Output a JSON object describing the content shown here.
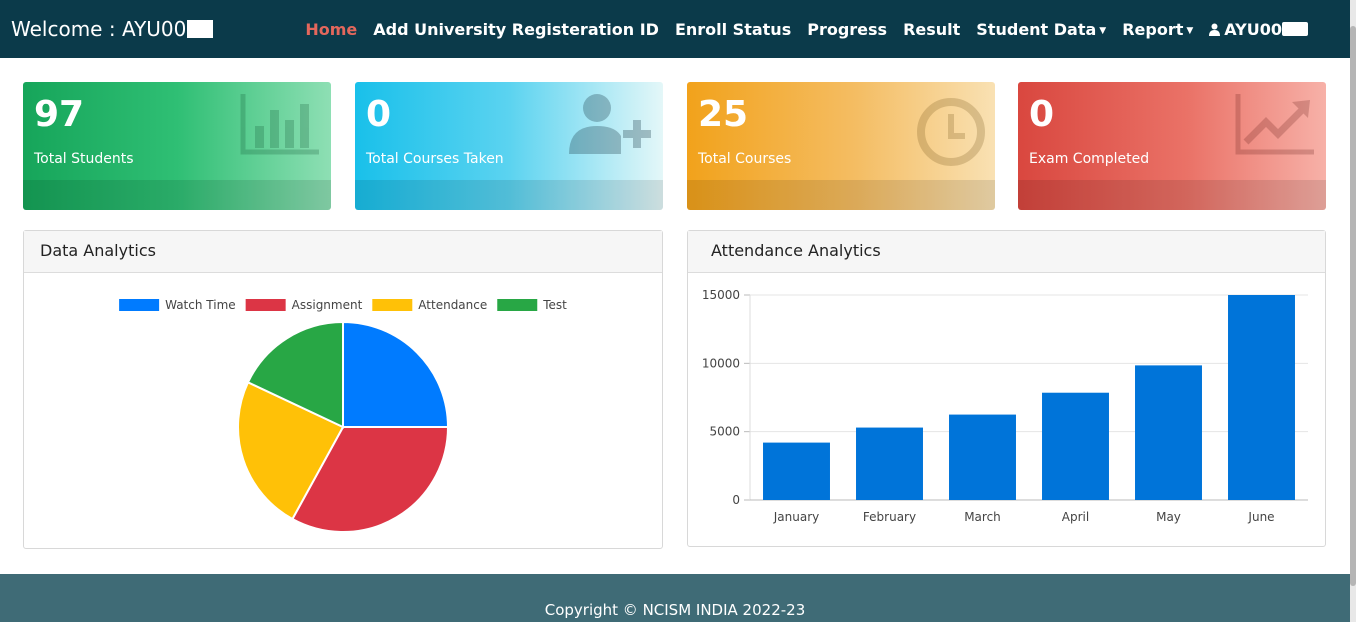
{
  "header": {
    "welcome": "Welcome : AYU00",
    "nav": [
      {
        "label": "Home",
        "active": true
      },
      {
        "label": "Add University Registeration ID"
      },
      {
        "label": "Enroll Status"
      },
      {
        "label": "Progress"
      },
      {
        "label": "Result"
      },
      {
        "label": "Student Data",
        "dropdown": true
      },
      {
        "label": "Report",
        "dropdown": true
      }
    ],
    "user": "AYU00"
  },
  "cards": [
    {
      "value": "97",
      "label": "Total Students",
      "icon": "bar-chart-icon"
    },
    {
      "value": "0",
      "label": "Total Courses Taken",
      "icon": "user-plus-icon"
    },
    {
      "value": "25",
      "label": "Total Courses",
      "icon": "clock-icon"
    },
    {
      "value": "0",
      "label": "Exam Completed",
      "icon": "line-chart-icon"
    }
  ],
  "panels": {
    "data_analytics": "Data Analytics",
    "attendance_analytics": "Attendance Analytics"
  },
  "chart_data": [
    {
      "type": "pie",
      "labels": [
        "Watch Time",
        "Assignment",
        "Attendance",
        "Test"
      ],
      "values": [
        25,
        33,
        24,
        18
      ],
      "colors": [
        "#007bff",
        "#dc3545",
        "#ffc107",
        "#28a745"
      ],
      "legend": "top"
    },
    {
      "type": "bar",
      "categories": [
        "January",
        "February",
        "March",
        "April",
        "May",
        "June"
      ],
      "values": [
        4200,
        5300,
        6250,
        7850,
        9850,
        15000
      ],
      "ylim": [
        0,
        15000
      ],
      "yticks": [
        0,
        5000,
        10000,
        15000
      ],
      "color": "#0074d9",
      "grid": true
    }
  ],
  "footer": "Copyright © NCISM INDIA 2022-23"
}
